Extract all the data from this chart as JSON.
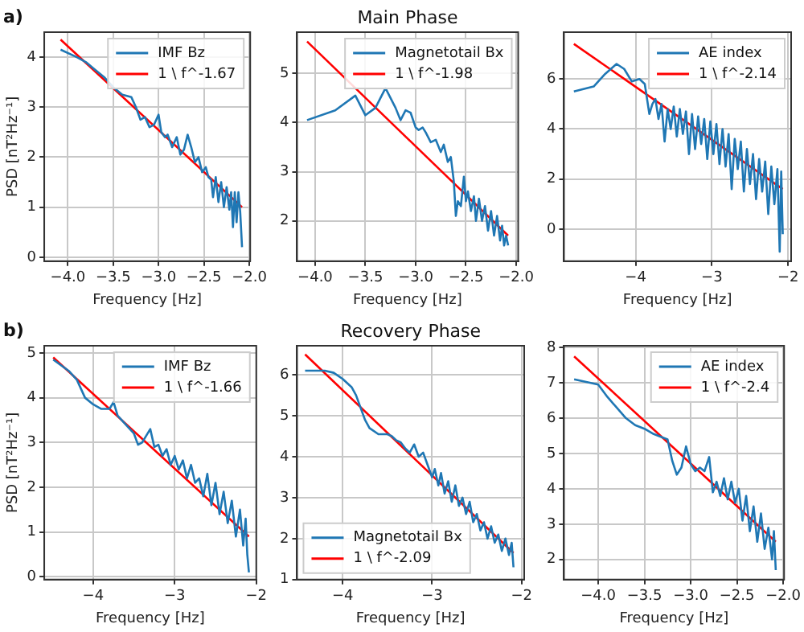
{
  "chart_data": [
    {
      "type": "line",
      "ylabel": "PSD [nT²Hz⁻¹]",
      "xlabel": "Frequency [Hz]",
      "annotations": [
        "a)"
      ],
      "xlim": [
        -4.26,
        -1.99
      ],
      "ylim": [
        -0.08,
        4.5
      ],
      "xticks": [
        {
          "value": -4,
          "label": "−4.0"
        },
        {
          "value": -3.5,
          "label": "−3.5"
        },
        {
          "value": -3,
          "label": "−3.0"
        },
        {
          "value": -2.5,
          "label": "−2.5"
        },
        {
          "value": -2,
          "label": "−2.0"
        }
      ],
      "yticks": [
        0,
        1,
        2,
        3,
        4
      ],
      "grid": true,
      "legend": "top right",
      "series": [
        {
          "name": "IMF Bz",
          "color": "#1f77b4",
          "x": [
            -4.08,
            -3.9,
            -3.8,
            -3.7,
            -3.6,
            -3.5,
            -3.4,
            -3.3,
            -3.25,
            -3.2,
            -3.15,
            -3.1,
            -3.05,
            -3.0,
            -2.97,
            -2.93,
            -2.9,
            -2.85,
            -2.8,
            -2.76,
            -2.72,
            -2.68,
            -2.64,
            -2.6,
            -2.56,
            -2.52,
            -2.48,
            -2.45,
            -2.42,
            -2.4,
            -2.37,
            -2.34,
            -2.31,
            -2.28,
            -2.25,
            -2.22,
            -2.2,
            -2.18,
            -2.16,
            -2.14,
            -2.12,
            -2.1,
            -2.08
          ],
          "values": [
            4.15,
            4.0,
            3.9,
            3.75,
            3.6,
            3.4,
            3.25,
            3.2,
            3.0,
            2.75,
            2.8,
            2.6,
            2.65,
            2.85,
            2.5,
            2.4,
            2.45,
            2.2,
            2.4,
            2.05,
            2.15,
            2.45,
            2.2,
            1.9,
            2.0,
            1.7,
            1.8,
            1.6,
            1.55,
            1.2,
            1.6,
            1.1,
            1.5,
            1.0,
            1.4,
            0.95,
            1.3,
            0.6,
            1.3,
            0.7,
            1.3,
            0.9,
            0.2
          ]
        },
        {
          "name": "1 \\ f^-1.67",
          "color": "#ff0000",
          "x": [
            -4.08,
            -2.08
          ],
          "values": [
            4.35,
            1.0
          ]
        }
      ]
    },
    {
      "type": "line",
      "title": "Main Phase",
      "xlabel": "Frequency [Hz]",
      "xlim": [
        -4.18,
        -1.98
      ],
      "ylim": [
        1.18,
        5.84
      ],
      "xticks": [
        {
          "value": -4,
          "label": "−4.0"
        },
        {
          "value": -3.5,
          "label": "−3.5"
        },
        {
          "value": -3,
          "label": "−3.0"
        },
        {
          "value": -2.5,
          "label": "−2.5"
        },
        {
          "value": -2,
          "label": "−2.0"
        }
      ],
      "yticks": [
        2,
        3,
        4,
        5
      ],
      "grid": true,
      "legend": "top right",
      "series": [
        {
          "name": "Magnetotail Bx",
          "color": "#1f77b4",
          "x": [
            -4.08,
            -3.8,
            -3.6,
            -3.5,
            -3.4,
            -3.3,
            -3.25,
            -3.2,
            -3.15,
            -3.1,
            -3.05,
            -3.0,
            -2.97,
            -2.93,
            -2.9,
            -2.85,
            -2.8,
            -2.75,
            -2.72,
            -2.68,
            -2.65,
            -2.62,
            -2.6,
            -2.58,
            -2.55,
            -2.52,
            -2.5,
            -2.48,
            -2.45,
            -2.42,
            -2.4,
            -2.37,
            -2.34,
            -2.31,
            -2.28,
            -2.25,
            -2.22,
            -2.19,
            -2.16,
            -2.14,
            -2.12,
            -2.1,
            -2.08
          ],
          "values": [
            4.05,
            4.25,
            4.55,
            4.15,
            4.3,
            4.7,
            4.5,
            4.3,
            4.05,
            4.25,
            4.2,
            3.9,
            3.85,
            3.9,
            3.8,
            3.6,
            3.65,
            3.4,
            3.55,
            3.2,
            3.3,
            2.8,
            2.1,
            2.4,
            2.3,
            2.9,
            2.4,
            2.6,
            2.2,
            2.5,
            2.0,
            2.45,
            2.0,
            2.3,
            1.8,
            2.2,
            1.7,
            2.1,
            1.6,
            1.9,
            1.5,
            1.7,
            1.5
          ]
        },
        {
          "name": "1 \\ f^-1.98",
          "color": "#ff0000",
          "x": [
            -4.08,
            -2.08
          ],
          "values": [
            5.65,
            1.7
          ]
        }
      ]
    },
    {
      "type": "line",
      "xlabel": "Frequency [Hz]",
      "xlim": [
        -4.94,
        -1.96
      ],
      "ylim": [
        -1.28,
        7.87
      ],
      "xticks": [
        {
          "value": -4,
          "label": "−4"
        },
        {
          "value": -3,
          "label": "−3"
        },
        {
          "value": -2,
          "label": "−2"
        }
      ],
      "yticks": [
        0,
        2,
        4,
        6
      ],
      "grid": true,
      "legend": "top right",
      "series": [
        {
          "name": "AE index",
          "color": "#1f77b4",
          "x": [
            -4.81,
            -4.55,
            -4.4,
            -4.25,
            -4.15,
            -4.05,
            -3.95,
            -3.88,
            -3.82,
            -3.78,
            -3.74,
            -3.7,
            -3.66,
            -3.62,
            -3.58,
            -3.54,
            -3.5,
            -3.46,
            -3.42,
            -3.38,
            -3.34,
            -3.3,
            -3.26,
            -3.22,
            -3.18,
            -3.14,
            -3.1,
            -3.06,
            -3.02,
            -2.98,
            -2.94,
            -2.9,
            -2.86,
            -2.82,
            -2.78,
            -2.74,
            -2.7,
            -2.66,
            -2.62,
            -2.58,
            -2.54,
            -2.5,
            -2.46,
            -2.42,
            -2.38,
            -2.34,
            -2.3,
            -2.26,
            -2.22,
            -2.18,
            -2.14,
            -2.11,
            -2.09,
            -2.07
          ],
          "values": [
            5.5,
            5.7,
            6.2,
            6.6,
            6.4,
            5.9,
            6.0,
            5.8,
            4.6,
            5.0,
            5.2,
            4.4,
            5.0,
            3.5,
            4.8,
            4.0,
            4.9,
            3.7,
            4.8,
            3.8,
            4.7,
            3.0,
            4.6,
            3.2,
            4.5,
            3.4,
            4.4,
            2.8,
            4.3,
            3.0,
            4.2,
            2.6,
            4.0,
            2.5,
            3.8,
            1.6,
            3.6,
            2.4,
            3.5,
            1.5,
            3.2,
            1.8,
            3.0,
            1.2,
            2.8,
            1.5,
            2.7,
            0.6,
            2.5,
            1.0,
            2.4,
            -0.9,
            2.3,
            -0.2
          ]
        },
        {
          "name": "1 \\ f^-2.14",
          "color": "#ff0000",
          "x": [
            -4.81,
            -2.07
          ],
          "values": [
            7.4,
            1.6
          ]
        }
      ]
    },
    {
      "type": "line",
      "ylabel": "PSD [nT²Hz⁻¹]",
      "xlabel": "Frequency [Hz]",
      "annotations": [
        "b)"
      ],
      "xlim": [
        -4.6,
        -2.0
      ],
      "ylim": [
        -0.06,
        5.16
      ],
      "xticks": [
        {
          "value": -4,
          "label": "−4"
        },
        {
          "value": -3,
          "label": "−3"
        },
        {
          "value": -2,
          "label": "−2"
        }
      ],
      "yticks": [
        0,
        1,
        2,
        3,
        4,
        5
      ],
      "grid": true,
      "legend": "top right",
      "series": [
        {
          "name": "IMF Bz",
          "color": "#1f77b4",
          "x": [
            -4.49,
            -4.3,
            -4.2,
            -4.1,
            -4.0,
            -3.9,
            -3.8,
            -3.75,
            -3.7,
            -3.6,
            -3.5,
            -3.45,
            -3.4,
            -3.3,
            -3.25,
            -3.2,
            -3.15,
            -3.1,
            -3.05,
            -3.0,
            -2.95,
            -2.9,
            -2.85,
            -2.8,
            -2.75,
            -2.7,
            -2.65,
            -2.6,
            -2.55,
            -2.5,
            -2.45,
            -2.4,
            -2.35,
            -2.3,
            -2.25,
            -2.2,
            -2.16,
            -2.13,
            -2.11,
            -2.09
          ],
          "values": [
            4.85,
            4.6,
            4.4,
            4.0,
            3.85,
            3.75,
            3.75,
            3.9,
            3.6,
            3.4,
            3.2,
            2.95,
            3.0,
            3.3,
            2.9,
            2.95,
            2.7,
            2.85,
            2.5,
            2.7,
            2.4,
            2.6,
            2.2,
            2.5,
            2.1,
            2.2,
            1.8,
            2.3,
            1.6,
            2.1,
            1.4,
            1.9,
            1.2,
            1.7,
            0.9,
            1.5,
            0.7,
            1.3,
            0.5,
            0.1
          ]
        },
        {
          "name": "1 \\ f^-1.66",
          "color": "#ff0000",
          "x": [
            -4.49,
            -2.09
          ],
          "values": [
            4.9,
            0.9
          ]
        }
      ]
    },
    {
      "type": "line",
      "title": "Recovery Phase",
      "xlabel": "Frequency [Hz]",
      "xlim": [
        -4.51,
        -1.97
      ],
      "ylim": [
        1.0,
        6.71
      ],
      "xticks": [
        {
          "value": -4,
          "label": "−4"
        },
        {
          "value": -3,
          "label": "−3"
        },
        {
          "value": -2,
          "label": "−2"
        }
      ],
      "yticks": [
        1,
        2,
        3,
        4,
        5,
        6
      ],
      "grid": true,
      "legend": "bottom left",
      "series": [
        {
          "name": "Magnetotail Bx",
          "color": "#1f77b4",
          "x": [
            -4.42,
            -4.2,
            -4.1,
            -4.0,
            -3.9,
            -3.85,
            -3.8,
            -3.75,
            -3.7,
            -3.6,
            -3.5,
            -3.45,
            -3.4,
            -3.35,
            -3.3,
            -3.25,
            -3.2,
            -3.15,
            -3.1,
            -3.05,
            -3.0,
            -2.97,
            -2.93,
            -2.9,
            -2.86,
            -2.82,
            -2.78,
            -2.74,
            -2.7,
            -2.66,
            -2.62,
            -2.58,
            -2.54,
            -2.5,
            -2.46,
            -2.42,
            -2.38,
            -2.34,
            -2.3,
            -2.26,
            -2.22,
            -2.18,
            -2.14,
            -2.11,
            -2.09
          ],
          "values": [
            6.1,
            6.1,
            6.05,
            5.9,
            5.7,
            5.5,
            5.2,
            4.9,
            4.7,
            4.55,
            4.55,
            4.5,
            4.4,
            4.35,
            4.2,
            4.1,
            4.3,
            4.0,
            4.1,
            3.8,
            3.5,
            3.7,
            3.3,
            3.6,
            3.1,
            3.4,
            2.9,
            3.3,
            2.8,
            3.0,
            2.6,
            2.9,
            2.4,
            2.6,
            2.2,
            2.4,
            2.0,
            2.3,
            1.9,
            2.1,
            1.7,
            2.0,
            1.6,
            1.9,
            1.3
          ]
        },
        {
          "name": "1 \\ f^-2.09",
          "color": "#ff0000",
          "x": [
            -4.42,
            -2.09
          ],
          "values": [
            6.5,
            1.65
          ]
        }
      ]
    },
    {
      "type": "line",
      "xlabel": "Frequency [Hz]",
      "xlim": [
        -4.37,
        -1.99
      ],
      "ylim": [
        1.43,
        8.05
      ],
      "xticks": [
        {
          "value": -4,
          "label": "−4.0"
        },
        {
          "value": -3.5,
          "label": "−3.5"
        },
        {
          "value": -3,
          "label": "−3.0"
        },
        {
          "value": -2.5,
          "label": "−2.5"
        },
        {
          "value": -2,
          "label": "−2.0"
        }
      ],
      "yticks": [
        2,
        3,
        4,
        5,
        6,
        7,
        8
      ],
      "grid": true,
      "legend": "top right",
      "series": [
        {
          "name": "AE index",
          "color": "#1f77b4",
          "x": [
            -4.26,
            -4.0,
            -3.9,
            -3.8,
            -3.7,
            -3.6,
            -3.5,
            -3.4,
            -3.3,
            -3.25,
            -3.2,
            -3.15,
            -3.1,
            -3.05,
            -3.0,
            -2.95,
            -2.9,
            -2.85,
            -2.8,
            -2.76,
            -2.72,
            -2.68,
            -2.64,
            -2.6,
            -2.56,
            -2.52,
            -2.48,
            -2.44,
            -2.4,
            -2.36,
            -2.32,
            -2.28,
            -2.24,
            -2.2,
            -2.16,
            -2.12,
            -2.1,
            -2.08
          ],
          "values": [
            7.1,
            6.95,
            6.6,
            6.3,
            6.0,
            5.8,
            5.7,
            5.55,
            5.45,
            5.4,
            4.8,
            4.4,
            4.6,
            5.2,
            4.7,
            4.5,
            4.6,
            4.5,
            4.9,
            3.9,
            4.2,
            3.8,
            4.3,
            3.7,
            4.2,
            3.6,
            4.0,
            3.1,
            3.8,
            2.8,
            3.5,
            2.5,
            3.3,
            2.3,
            2.9,
            2.0,
            2.8,
            1.7
          ]
        },
        {
          "name": "1 \\ f^-2.4",
          "color": "#ff0000",
          "x": [
            -4.26,
            -2.08
          ],
          "values": [
            7.75,
            2.5
          ]
        }
      ]
    }
  ]
}
